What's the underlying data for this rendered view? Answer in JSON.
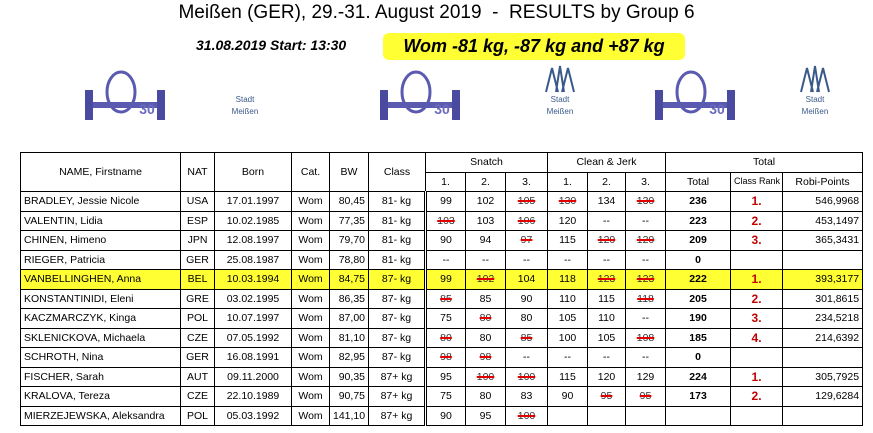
{
  "header": {
    "title": "Meißen (GER), 29.-31. August 2019  -  RESULTS by Group 6",
    "session": "31.08.2019 Start: 13:30",
    "group": "Wom -81 kg, -87 kg and +87 kg"
  },
  "logos": [
    {
      "kind": "anniversary",
      "text": [
        "30"
      ]
    },
    {
      "kind": "city",
      "text": [
        "Stadt",
        "Meißen"
      ]
    },
    {
      "kind": "anniversary",
      "text": [
        "30"
      ]
    },
    {
      "kind": "castle",
      "text": [
        "Stadt",
        "Meißen"
      ]
    },
    {
      "kind": "anniversary",
      "text": [
        "30"
      ]
    },
    {
      "kind": "castle",
      "text": [
        "Stadt",
        "Meißen"
      ]
    }
  ],
  "table": {
    "headers": [
      "NAME, Firstname",
      "NAT",
      "Born",
      "Cat.",
      "BW",
      "Class"
    ],
    "group_headers": [
      "Snatch",
      "Clean & Jerk",
      "Total"
    ],
    "attempt_headers": [
      "1.",
      "2.",
      "3.",
      "1.",
      "2.",
      "3."
    ],
    "total_headers": [
      "Total",
      "Class Rank",
      "Robi-Points"
    ],
    "highlight_row": 4,
    "rows": [
      {
        "cells": [
          "BRADLEY, Jessie Nicole",
          "USA",
          "17.01.1997",
          "Wom",
          "80,45",
          "81- kg",
          "99",
          "102",
          "105",
          "130",
          "134",
          "130",
          "236",
          "1.",
          "546,9968"
        ],
        "failed": [
          8,
          9,
          11
        ]
      },
      {
        "cells": [
          "VALENTIN, Lidia",
          "ESP",
          "10.02.1985",
          "Wom",
          "77,35",
          "81- kg",
          "103",
          "103",
          "106",
          "120",
          "--",
          "--",
          "223",
          "2.",
          "453,1497"
        ],
        "failed": [
          6,
          8
        ]
      },
      {
        "cells": [
          "CHINEN, Himeno",
          "JPN",
          "12.08.1997",
          "Wom",
          "79,70",
          "81- kg",
          "90",
          "94",
          "97",
          "115",
          "120",
          "120",
          "209",
          "3.",
          "365,3431"
        ],
        "failed": [
          8,
          10,
          11
        ]
      },
      {
        "cells": [
          "RIEGER, Patricia",
          "GER",
          "25.08.1987",
          "Wom",
          "78,80",
          "81- kg",
          "--",
          "--",
          "--",
          "--",
          "--",
          "--",
          "0",
          null,
          null
        ],
        "failed": []
      },
      {
        "cells": [
          "VANBELLINGHEN, Anna",
          "BEL",
          "10.03.1994",
          "Wom",
          "84,75",
          "87- kg",
          "99",
          "102",
          "104",
          "118",
          "123",
          "123",
          "222",
          "1.",
          "393,3177"
        ],
        "failed": [
          7,
          10,
          11
        ]
      },
      {
        "cells": [
          "KONSTANTINIDI, Eleni",
          "GRE",
          "03.02.1995",
          "Wom",
          "86,35",
          "87- kg",
          "85",
          "85",
          "90",
          "110",
          "115",
          "118",
          "205",
          "2.",
          "301,8615"
        ],
        "failed": [
          6,
          11
        ]
      },
      {
        "cells": [
          "KACZMARCZYK, Kinga",
          "POL",
          "10.07.1997",
          "Wom",
          "87,00",
          "87- kg",
          "75",
          "80",
          "80",
          "105",
          "110",
          "--",
          "190",
          "3.",
          "234,5218"
        ],
        "failed": [
          7
        ]
      },
      {
        "cells": [
          "SKLENICKOVA, Michaela",
          "CZE",
          "07.05.1992",
          "Wom",
          "81,10",
          "87- kg",
          "80",
          "80",
          "85",
          "100",
          "105",
          "108",
          "185",
          "4.",
          "214,6392"
        ],
        "failed": [
          6,
          8,
          11
        ]
      },
      {
        "cells": [
          "SCHROTH, Nina",
          "GER",
          "16.08.1991",
          "Wom",
          "82,95",
          "87- kg",
          "98",
          "98",
          "--",
          "--",
          "--",
          "--",
          "0",
          null,
          null
        ],
        "failed": [
          6,
          7
        ]
      },
      {
        "cells": [
          "FISCHER, Sarah",
          "AUT",
          "09.11.2000",
          "Wom",
          "90,35",
          "87+ kg",
          "95",
          "100",
          "100",
          "115",
          "120",
          "129",
          "224",
          "1.",
          "305,7925"
        ],
        "failed": [
          7,
          8
        ]
      },
      {
        "cells": [
          "KRALOVA, Tereza",
          "CZE",
          "22.10.1989",
          "Wom",
          "90,75",
          "87+ kg",
          "75",
          "80",
          "83",
          "90",
          "95",
          "95",
          "173",
          "2.",
          "129,6284"
        ],
        "failed": [
          10,
          11
        ]
      },
      {
        "cells": [
          "MIERZEJEWSKA, Aleksandra",
          "POL",
          "05.03.1992",
          "Wom",
          "141,10",
          "87+ kg",
          "90",
          "95",
          "100",
          null,
          null,
          null,
          null,
          null,
          null
        ],
        "failed": [
          8
        ]
      }
    ]
  }
}
